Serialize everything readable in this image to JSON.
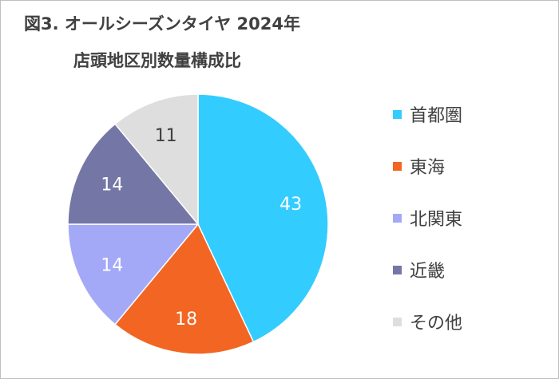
{
  "chart_data": {
    "type": "pie",
    "title": "図3. オールシーズンタイヤ 2024年",
    "subtitle": "店頭地区別数量構成比",
    "start_angle_deg": 0,
    "direction": "clockwise",
    "legend_position": "right",
    "slices": [
      {
        "label": "首都圏",
        "value": 43,
        "color": "#33ccff"
      },
      {
        "label": "東海",
        "value": 18,
        "color": "#f26522"
      },
      {
        "label": "北関東",
        "value": 14,
        "color": "#a3a9f7"
      },
      {
        "label": "近畿",
        "value": 14,
        "color": "#7477a6"
      },
      {
        "label": "その他",
        "value": 11,
        "color": "#dedede"
      }
    ],
    "data_label_colors": [
      "#ffffff",
      "#ffffff",
      "#ffffff",
      "#ffffff",
      "#404040"
    ]
  }
}
